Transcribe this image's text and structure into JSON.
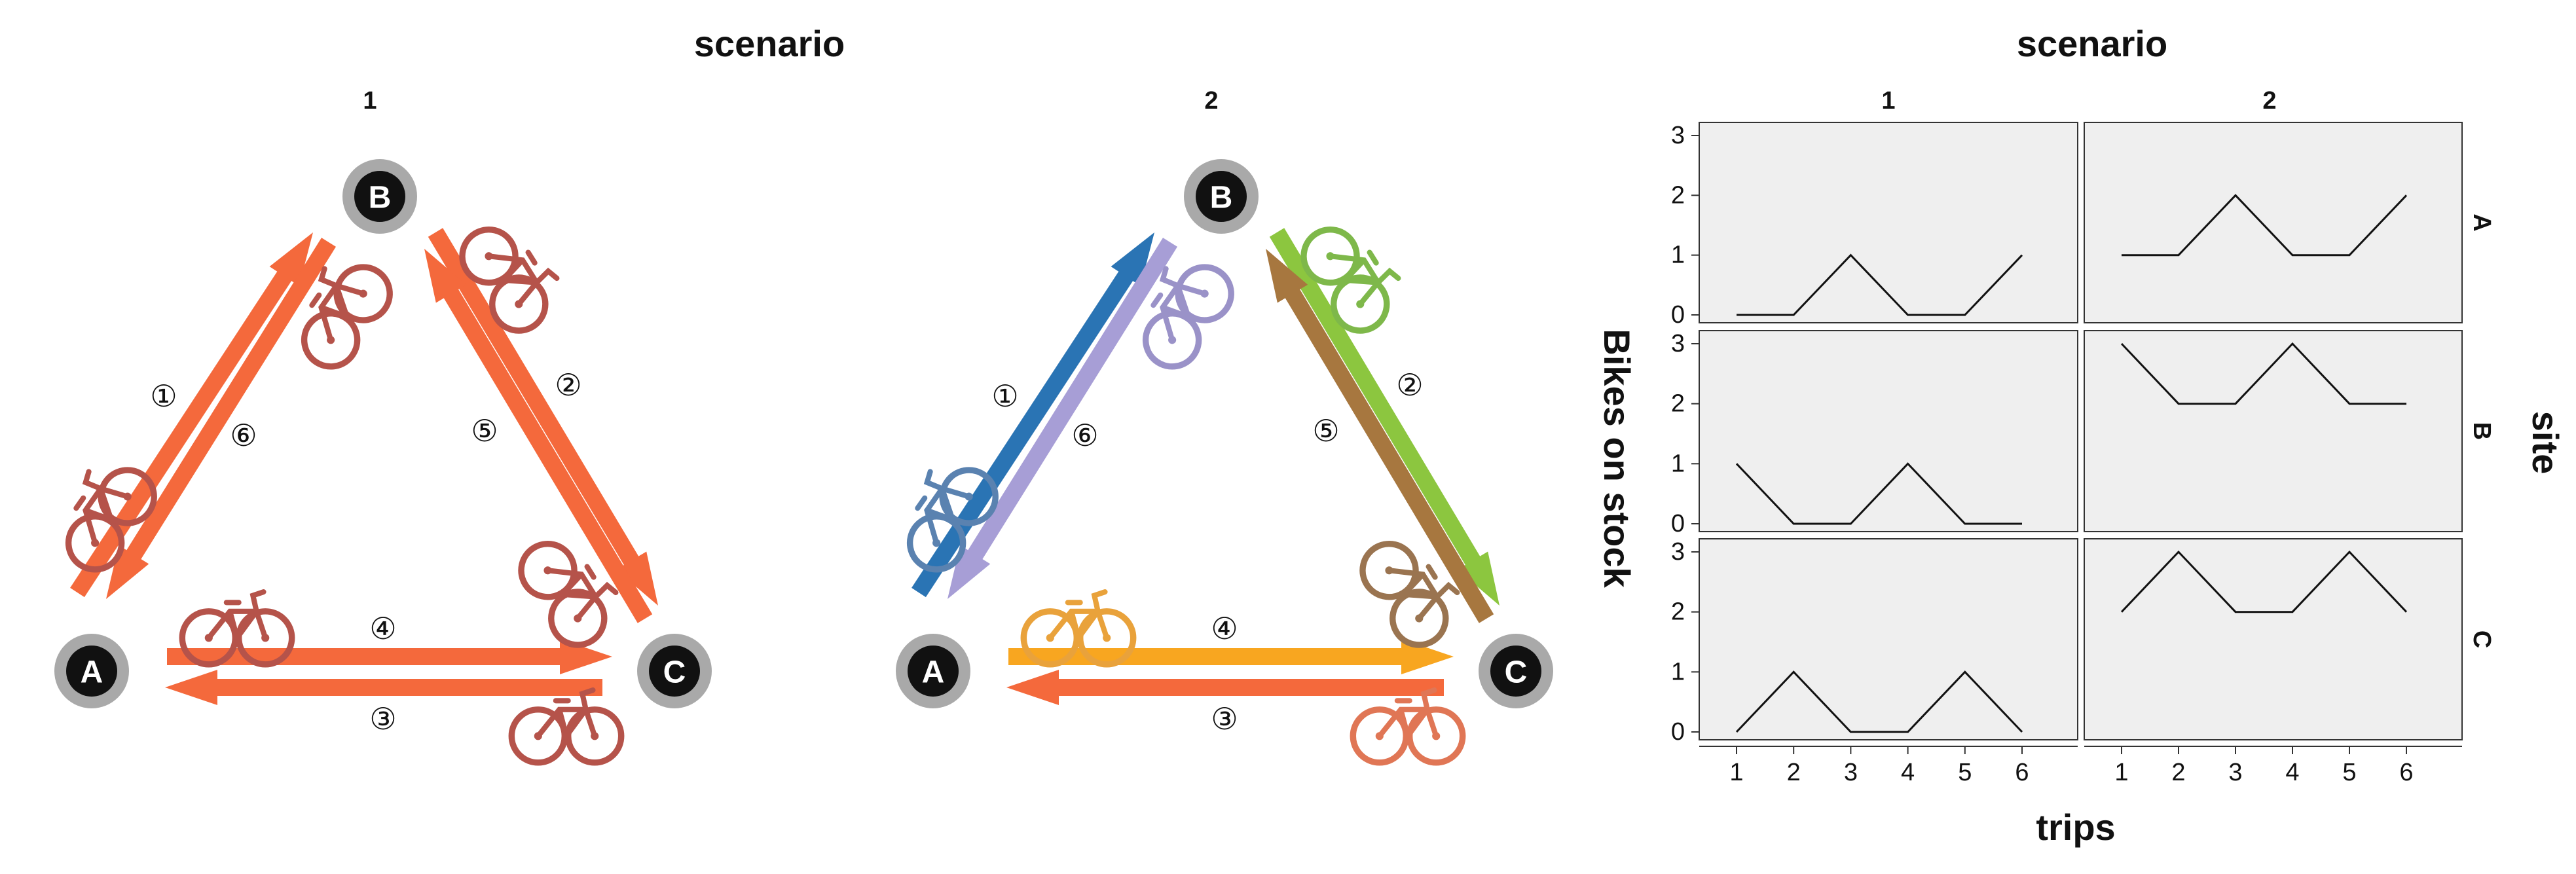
{
  "colors": {
    "orange": "#F4693C",
    "blue": "#2A74B4",
    "lavender": "#A79ED6",
    "green": "#8CC63F",
    "tan": "#A7773F",
    "yellow": "#F8A620",
    "node_ring": "#A9A9A9",
    "node_fill": "#111111",
    "panel_bg": "#EFEFEF",
    "bike_red": "#B5534A",
    "bike_blue": "#5A82B0",
    "bike_lavender": "#9A92C8",
    "bike_green": "#7EB84A",
    "bike_tan": "#9A7450",
    "bike_orange": "#E9A23B",
    "bike_salmon": "#E07655"
  },
  "diagrams": {
    "title": "scenario",
    "panels": [
      {
        "label": "1",
        "nodes": {
          "A": "A",
          "B": "B",
          "C": "C"
        },
        "trips": [
          {
            "id": "1",
            "symbol": "①",
            "from": "A",
            "to": "B",
            "color": "orange",
            "bike": "bike_red"
          },
          {
            "id": "2",
            "symbol": "②",
            "from": "B",
            "to": "C",
            "color": "orange",
            "bike": "bike_red"
          },
          {
            "id": "3",
            "symbol": "③",
            "from": "C",
            "to": "A",
            "color": "orange",
            "bike": "bike_red"
          },
          {
            "id": "4",
            "symbol": "④",
            "from": "A",
            "to": "C",
            "color": "orange",
            "bike": "bike_red"
          },
          {
            "id": "5",
            "symbol": "⑤",
            "from": "C",
            "to": "B",
            "color": "orange",
            "bike": "bike_red"
          },
          {
            "id": "6",
            "symbol": "⑥",
            "from": "B",
            "to": "A",
            "color": "orange",
            "bike": "bike_red"
          }
        ]
      },
      {
        "label": "2",
        "nodes": {
          "A": "A",
          "B": "B",
          "C": "C"
        },
        "trips": [
          {
            "id": "1",
            "symbol": "①",
            "from": "A",
            "to": "B",
            "color": "blue",
            "bike": "bike_blue"
          },
          {
            "id": "2",
            "symbol": "②",
            "from": "B",
            "to": "C",
            "color": "green",
            "bike": "bike_green"
          },
          {
            "id": "3",
            "symbol": "③",
            "from": "C",
            "to": "A",
            "color": "orange",
            "bike": "bike_salmon"
          },
          {
            "id": "4",
            "symbol": "④",
            "from": "A",
            "to": "C",
            "color": "yellow",
            "bike": "bike_orange"
          },
          {
            "id": "5",
            "symbol": "⑤",
            "from": "C",
            "to": "B",
            "color": "tan",
            "bike": "bike_tan"
          },
          {
            "id": "6",
            "symbol": "⑥",
            "from": "B",
            "to": "A",
            "color": "lavender",
            "bike": "bike_lavender"
          }
        ]
      }
    ]
  },
  "chart_data": {
    "type": "line",
    "title": "scenario",
    "column_facet_labels": [
      "1",
      "2"
    ],
    "row_facet_title": "site",
    "row_facet_labels": [
      "A",
      "B",
      "C"
    ],
    "xlabel": "trips",
    "ylabel": "Bikes on stock",
    "x": [
      1,
      2,
      3,
      4,
      5,
      6
    ],
    "x_ticks": [
      "1",
      "2",
      "3",
      "4",
      "5",
      "6"
    ],
    "y_ticks": [
      "0",
      "1",
      "2",
      "3"
    ],
    "ylim": [
      0,
      3
    ],
    "grid": false,
    "series": [
      {
        "scenario": "1",
        "site": "A",
        "values": [
          0,
          0,
          1,
          0,
          0,
          1
        ]
      },
      {
        "scenario": "2",
        "site": "A",
        "values": [
          1,
          1,
          2,
          1,
          1,
          2
        ]
      },
      {
        "scenario": "1",
        "site": "B",
        "values": [
          1,
          0,
          0,
          1,
          0,
          0
        ]
      },
      {
        "scenario": "2",
        "site": "B",
        "values": [
          3,
          2,
          2,
          3,
          2,
          2
        ]
      },
      {
        "scenario": "1",
        "site": "C",
        "values": [
          0,
          1,
          0,
          0,
          1,
          0
        ]
      },
      {
        "scenario": "2",
        "site": "C",
        "values": [
          2,
          3,
          2,
          2,
          3,
          2
        ]
      }
    ]
  }
}
